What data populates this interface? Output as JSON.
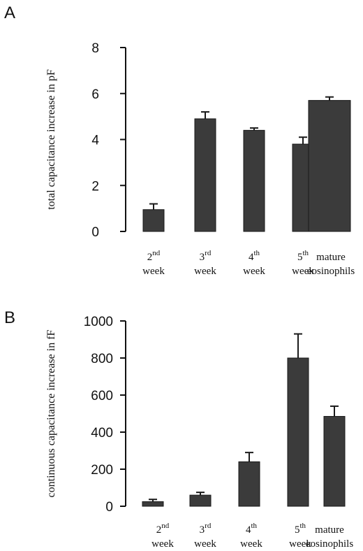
{
  "chart_data": [
    {
      "panel": "A",
      "type": "bar",
      "ylabel": "total capacitance increase in pF",
      "xlabel": "",
      "ylim": [
        0,
        8
      ],
      "yticks": [
        0,
        2,
        4,
        6,
        8
      ],
      "categories": [
        {
          "main": "2",
          "sup": "nd",
          "line2": "week"
        },
        {
          "main": "3",
          "sup": "rd",
          "line2": "week"
        },
        {
          "main": "4",
          "sup": "th",
          "line2": "week"
        },
        {
          "main": "5",
          "sup": "th",
          "line2": "week"
        },
        {
          "main": "mature",
          "sup": "",
          "line2": "eosinophils"
        }
      ],
      "values": [
        0.95,
        4.9,
        4.4,
        3.8,
        5.7
      ],
      "errors": [
        0.25,
        0.3,
        0.1,
        0.3,
        0.15
      ],
      "bar_color": "#3b3b3b"
    },
    {
      "panel": "B",
      "type": "bar",
      "ylabel": "continuous capacitance increase in fF",
      "xlabel": "",
      "ylim": [
        0,
        1000
      ],
      "yticks": [
        0,
        200,
        400,
        600,
        800,
        1000
      ],
      "categories": [
        {
          "main": "2",
          "sup": "nd",
          "line2": "week"
        },
        {
          "main": "3",
          "sup": "rd",
          "line2": "week"
        },
        {
          "main": "4",
          "sup": "th",
          "line2": "week"
        },
        {
          "main": "5",
          "sup": "th",
          "line2": "week"
        },
        {
          "main": "mature",
          "sup": "",
          "line2": "eosinophils"
        }
      ],
      "values": [
        25,
        60,
        240,
        800,
        485
      ],
      "errors": [
        12,
        15,
        50,
        130,
        55
      ],
      "bar_color": "#3b3b3b"
    }
  ]
}
